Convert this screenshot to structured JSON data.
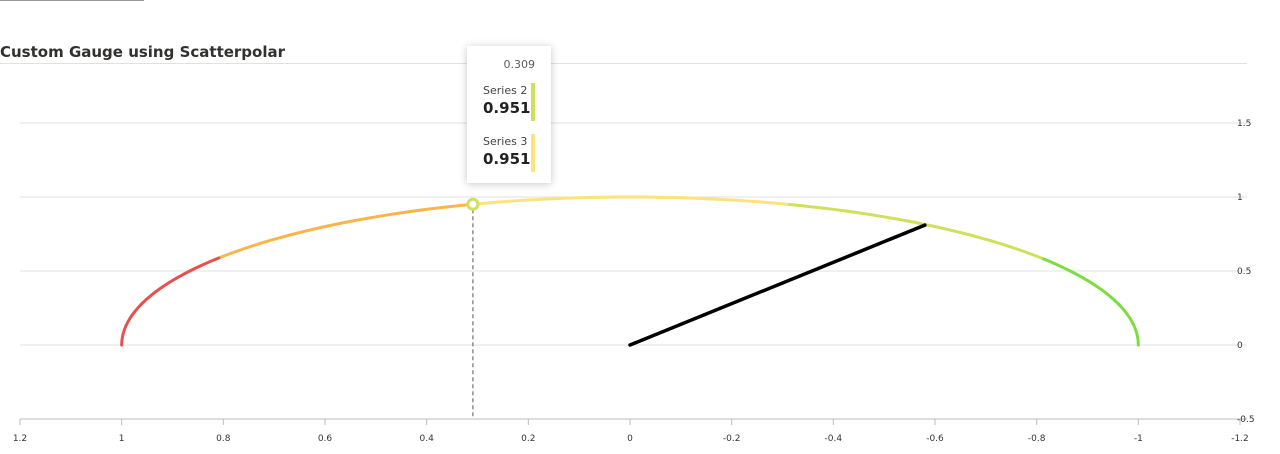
{
  "header": {
    "title": "Custom Gauge using Scatterpolar"
  },
  "chart_data": {
    "type": "line",
    "title": "Custom Gauge using Scatterpolar",
    "xlabel": "",
    "ylabel": "",
    "xlim": [
      1.2,
      -1.2
    ],
    "ylim": [
      -0.5,
      1.5
    ],
    "x_ticks": [
      "1.2",
      "1",
      "0.8",
      "0.6",
      "0.4",
      "0.2",
      "0",
      "-0.2",
      "-0.4",
      "-0.6",
      "-0.8",
      "-1",
      "-1.2"
    ],
    "y_ticks": [
      "1.5",
      "1",
      "0.5",
      "0",
      "-0.5"
    ],
    "grid": true,
    "gauge_arc": {
      "segments": [
        {
          "from_deg": 180,
          "to_deg": 144,
          "color": "#7ddc3f"
        },
        {
          "from_deg": 144,
          "to_deg": 108,
          "color": "#cfe05a"
        },
        {
          "from_deg": 108,
          "to_deg": 72,
          "color": "#fde27d"
        },
        {
          "from_deg": 72,
          "to_deg": 36,
          "color": "#fbb44b"
        },
        {
          "from_deg": 36,
          "to_deg": 0,
          "color": "#e8504d"
        }
      ]
    },
    "needle": {
      "points": [
        {
          "x": 0,
          "y": 0
        },
        {
          "x": -0.58,
          "y": 0.81
        }
      ],
      "color": "#000000"
    },
    "hover_point": {
      "x": 0.309,
      "y": 0.951,
      "color": "#cfe05a"
    },
    "tooltip": {
      "x_label": "0.309",
      "rows": [
        {
          "name": "Series 2",
          "value": "0.951",
          "color": "#cfe05a"
        },
        {
          "name": "Series 3",
          "value": "0.951",
          "color": "#fde27d"
        }
      ]
    }
  }
}
